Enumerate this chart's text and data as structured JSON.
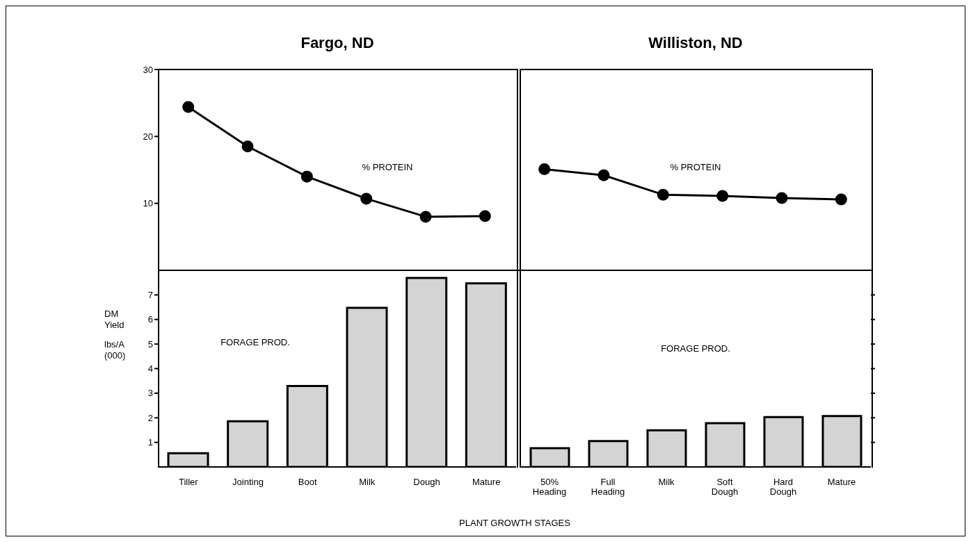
{
  "chart_data": [
    {
      "type": "line",
      "annotations": [
        "Fargo, ND",
        "Williston, ND",
        "% PROTEIN",
        "% PROTEIN"
      ],
      "categories": [
        null,
        null,
        null,
        null,
        null,
        null,
        null,
        null,
        null,
        null,
        null,
        null
      ],
      "series": [
        {
          "color": "#000000",
          "values": [
            24.4,
            18.5,
            14.0,
            10.7,
            8.0,
            8.1,
            null,
            null,
            null,
            null,
            null,
            null
          ]
        },
        {
          "color": "#000000",
          "values": [
            null,
            null,
            null,
            null,
            null,
            null,
            15.1,
            14.2,
            11.3,
            11.1,
            10.8,
            10.6
          ]
        }
      ],
      "ylim": [
        0,
        30
      ],
      "yticks": [
        10,
        20,
        30
      ],
      "marker": "circle",
      "tick_labels": "y"
    },
    {
      "type": "bar",
      "ylabel": "DM Yield lbs/A (000)",
      "xlabel": "PLANT GROWTH STAGES",
      "annotations": [
        "FORAGE PROD."
      ],
      "categories": [
        "Tiller",
        "Jointing",
        "Boot",
        "Milk",
        "Dough",
        "Mature"
      ],
      "series": [
        {
          "color": "#d4d4d4",
          "values": [
            0.56,
            1.86,
            3.29,
            6.47,
            7.69,
            7.47
          ]
        }
      ],
      "ylim": [
        0,
        8
      ],
      "yticks": [
        1,
        2,
        3,
        4,
        5,
        6,
        7
      ]
    },
    {
      "type": "bar",
      "annotations": [
        "FORAGE PROD."
      ],
      "categories": [
        "50% Heading",
        "Full Heading",
        "Milk",
        "Soft Dough",
        "Hard Dough",
        "Mature"
      ],
      "series": [
        {
          "color": "#d4d4d4",
          "values": [
            0.76,
            1.05,
            1.49,
            1.78,
            2.03,
            2.07
          ]
        }
      ],
      "ylim": [
        0,
        8
      ],
      "yticks": [
        {
          "value": 1,
          "label": null
        },
        {
          "value": 2,
          "label": null
        },
        {
          "value": 3,
          "label": null
        },
        {
          "value": 4,
          "label": null
        },
        {
          "value": 5,
          "label": null
        },
        {
          "value": 6,
          "label": null
        },
        {
          "value": 7,
          "label": null
        }
      ],
      "tick_labels": "x"
    }
  ]
}
